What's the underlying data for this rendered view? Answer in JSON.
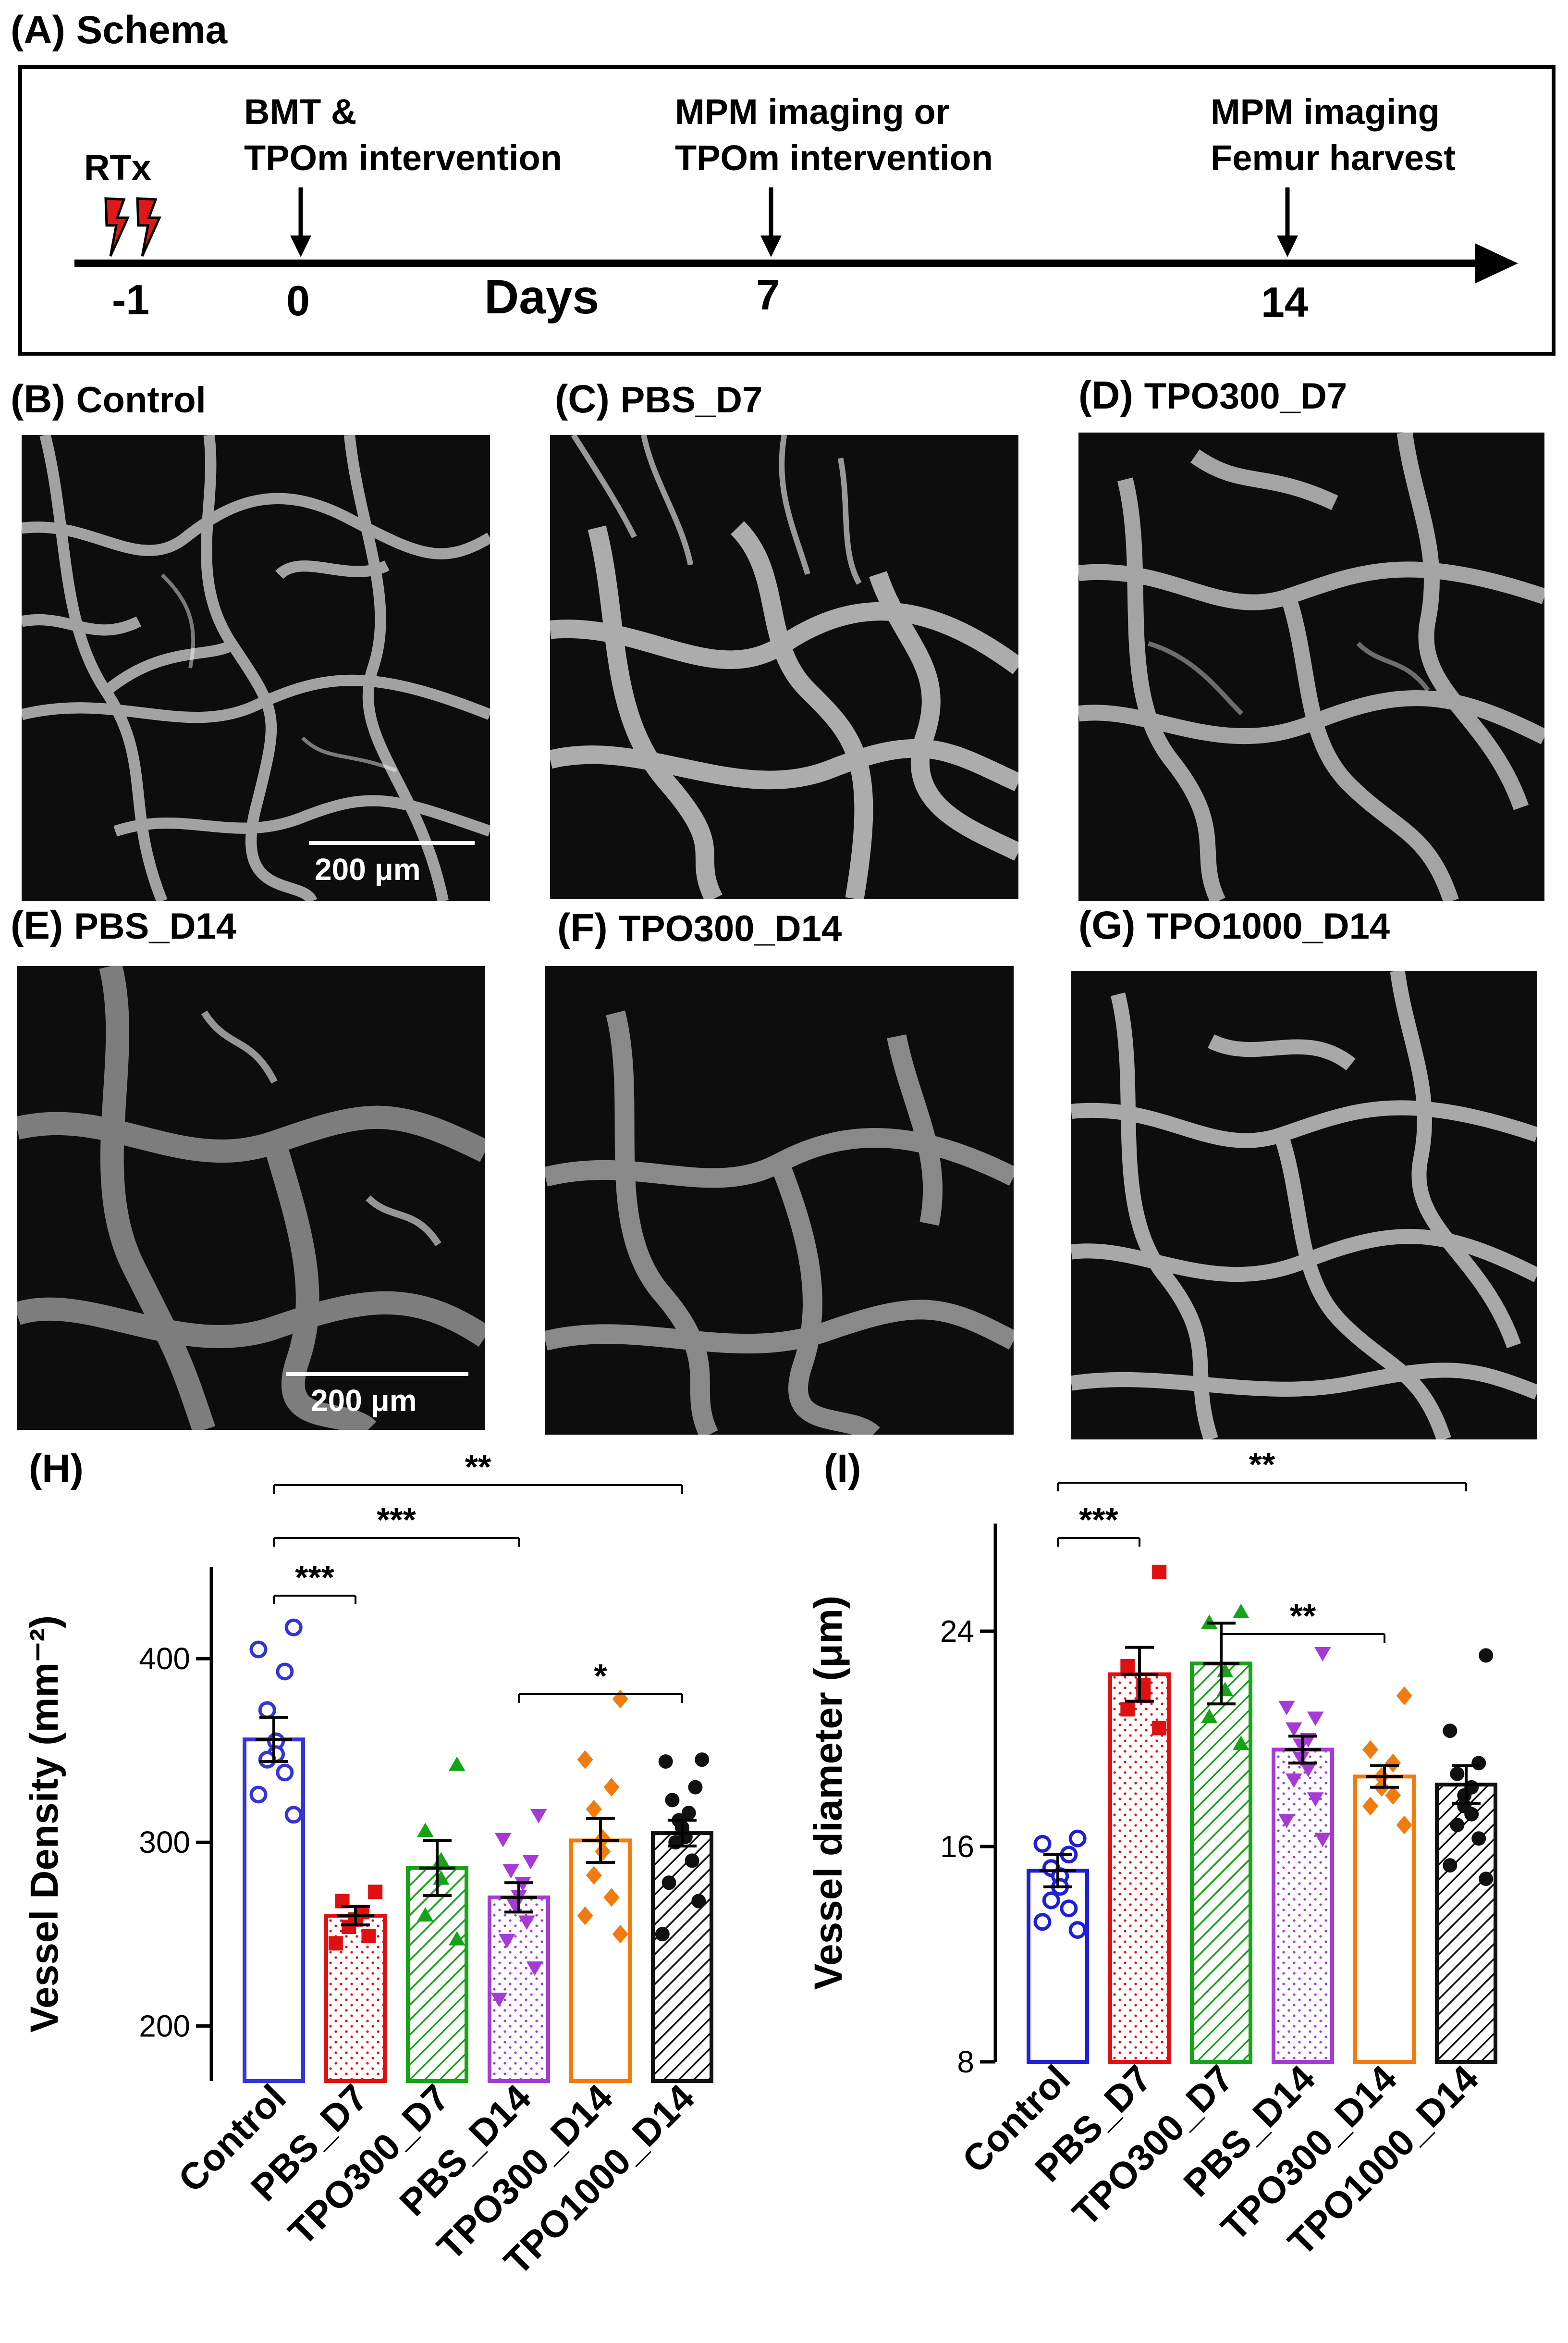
{
  "schema": {
    "panel_label": "(A) Schema",
    "events": [
      {
        "day": "-1",
        "label_lines": [
          "RTx"
        ],
        "has_arrow": false
      },
      {
        "day": "0",
        "label_lines": [
          "BMT &",
          "TPOm intervention"
        ],
        "has_arrow": true
      },
      {
        "day": "7",
        "label_lines": [
          "MPM imaging or",
          "TPOm intervention"
        ],
        "has_arrow": true
      },
      {
        "day": "14",
        "label_lines": [
          "MPM imaging",
          "Femur harvest"
        ],
        "has_arrow": true
      }
    ],
    "axis_label": "Days"
  },
  "images": [
    {
      "id": "B",
      "label": "(B)",
      "title": "Control",
      "scale_bar": "200 μm"
    },
    {
      "id": "C",
      "label": "(C)",
      "title": "PBS_D7",
      "scale_bar": ""
    },
    {
      "id": "D",
      "label": "(D)",
      "title": "TPO300_D7",
      "scale_bar": ""
    },
    {
      "id": "E",
      "label": "(E)",
      "title": "PBS_D14",
      "scale_bar": "200 μm"
    },
    {
      "id": "F",
      "label": "(F)",
      "title": "TPO300_D14",
      "scale_bar": ""
    },
    {
      "id": "G",
      "label": "(G)",
      "title": "TPO1000_D14",
      "scale_bar": ""
    }
  ],
  "chart_data": [
    {
      "panel_label": "(H)",
      "type": "bar",
      "categories": [
        "Control",
        "PBS_D7",
        "TPO300_D7",
        "PBS_D14",
        "TPO300_D14",
        "TPO1000_D14"
      ],
      "colors": [
        "#3535d6",
        "#e01010",
        "#17a317",
        "#a53ad4",
        "#f07b10",
        "#111111"
      ],
      "markers": [
        "circle-open",
        "square",
        "triangle-up",
        "triangle-down",
        "diamond",
        "circle"
      ],
      "patterns": [
        "none",
        "dots",
        "diag-back",
        "dots",
        "none",
        "diag-back"
      ],
      "values": [
        356,
        260,
        286,
        270,
        301,
        305
      ],
      "sem": [
        12,
        5,
        15,
        8,
        12,
        7
      ],
      "points": [
        [
          417,
          405,
          393,
          372,
          355,
          348,
          345,
          338,
          326,
          315
        ],
        [
          273,
          268,
          262,
          258,
          254,
          249,
          245
        ],
        [
          342,
          306,
          290,
          280,
          260,
          247
        ],
        [
          315,
          302,
          290,
          285,
          278,
          271,
          266,
          257,
          247,
          232,
          215
        ],
        [
          378,
          345,
          330,
          318,
          302,
          295,
          282,
          270,
          260,
          250
        ],
        [
          345,
          344,
          330,
          323,
          316,
          312,
          308,
          303,
          300,
          290,
          278,
          268,
          250
        ]
      ],
      "ylabel": "Vessel Density (mm⁻²)",
      "ylim": [
        170,
        450
      ],
      "yticks": [
        200,
        300,
        400
      ],
      "significance": [
        {
          "from": 0,
          "to": 5,
          "label": "**"
        },
        {
          "from": 0,
          "to": 3,
          "label": "***"
        },
        {
          "from": 0,
          "to": 1,
          "label": "***"
        },
        {
          "from": 3,
          "to": 5,
          "label": "*"
        }
      ]
    },
    {
      "panel_label": "(I)",
      "type": "bar",
      "categories": [
        "Control",
        "PBS_D7",
        "TPO300_D7",
        "PBS_D14",
        "TPO300_D14",
        "TPO1000_D14"
      ],
      "colors": [
        "#1f1fd6",
        "#e01010",
        "#17a317",
        "#a53ad4",
        "#f07b10",
        "#111111"
      ],
      "markers": [
        "circle-open",
        "square",
        "triangle-up",
        "triangle-down",
        "diamond",
        "circle"
      ],
      "patterns": [
        "none",
        "dots",
        "diag-back",
        "dots",
        "none",
        "diag-back"
      ],
      "values": [
        15.1,
        22.4,
        22.8,
        19.6,
        18.6,
        18.3
      ],
      "sem": [
        0.6,
        1.0,
        1.5,
        0.5,
        0.4,
        0.7
      ],
      "points": [
        [
          16.3,
          16.1,
          15.7,
          15.2,
          14.9,
          14.5,
          14.0,
          13.7,
          13.2,
          12.9
        ],
        [
          26.2,
          22.7,
          22.0,
          21.6,
          21.1,
          20.4
        ],
        [
          24.7,
          24.3,
          22.5,
          21.8,
          20.8,
          19.8
        ],
        [
          23.2,
          21.2,
          20.8,
          20.4,
          20.0,
          19.8,
          19.3,
          18.9,
          18.5,
          17.8,
          17.0,
          16.3
        ],
        [
          21.6,
          19.6,
          19.1,
          18.6,
          18.2,
          17.9,
          17.5,
          16.8
        ],
        [
          23.1,
          20.3,
          19.1,
          18.7,
          18.2,
          17.9,
          17.5,
          17.2,
          16.8,
          16.3,
          15.3,
          14.8
        ]
      ],
      "ylabel": "Vessel diameter (μm)",
      "ylim": [
        8,
        28
      ],
      "yticks": [
        8,
        16,
        24
      ],
      "significance": [
        {
          "from": 0,
          "to": 5,
          "label": "**"
        },
        {
          "from": 0,
          "to": 1,
          "label": "***"
        },
        {
          "from": 2,
          "to": 4,
          "label": "**"
        }
      ]
    }
  ]
}
